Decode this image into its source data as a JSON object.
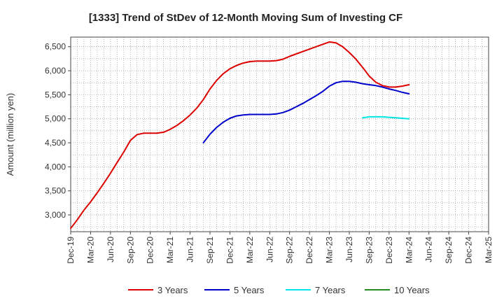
{
  "chart_data": {
    "type": "line",
    "title": "[1333]  Trend of StDev of 12-Month Moving Sum of Investing CF",
    "xlabel": "",
    "ylabel": "Amount (million yen)",
    "ylim": [
      2650,
      6700
    ],
    "y_ticks": [
      3000,
      3500,
      4000,
      4500,
      5000,
      5500,
      6000,
      6500
    ],
    "y_tick_labels": [
      "3,000",
      "3,500",
      "4,000",
      "4,500",
      "5,000",
      "5,500",
      "6,000",
      "6,500"
    ],
    "x_ticks": [
      "Dec-19",
      "Mar-20",
      "Jun-20",
      "Sep-20",
      "Dec-20",
      "Mar-21",
      "Jun-21",
      "Sep-21",
      "Dec-21",
      "Mar-22",
      "Jun-22",
      "Sep-22",
      "Dec-22",
      "Mar-23",
      "Jun-23",
      "Sep-23",
      "Dec-23",
      "Mar-24",
      "Jun-24",
      "Sep-24",
      "Dec-24",
      "Mar-25"
    ],
    "grid": true,
    "legend_position": "bottom",
    "series": [
      {
        "name": "3 Years",
        "color": "#dd0000",
        "values": [
          [
            "2019-12",
            2720
          ],
          [
            "2020-01",
            2900
          ],
          [
            "2020-02",
            3100
          ],
          [
            "2020-03",
            3270
          ],
          [
            "2020-04",
            3460
          ],
          [
            "2020-05",
            3660
          ],
          [
            "2020-06",
            3870
          ],
          [
            "2020-07",
            4090
          ],
          [
            "2020-08",
            4310
          ],
          [
            "2020-09",
            4550
          ],
          [
            "2020-10",
            4670
          ],
          [
            "2020-11",
            4700
          ],
          [
            "2020-12",
            4700
          ],
          [
            "2021-01",
            4700
          ],
          [
            "2021-02",
            4720
          ],
          [
            "2021-03",
            4780
          ],
          [
            "2021-04",
            4860
          ],
          [
            "2021-05",
            4960
          ],
          [
            "2021-06",
            5080
          ],
          [
            "2021-07",
            5220
          ],
          [
            "2021-08",
            5400
          ],
          [
            "2021-09",
            5620
          ],
          [
            "2021-10",
            5800
          ],
          [
            "2021-11",
            5940
          ],
          [
            "2021-12",
            6040
          ],
          [
            "2022-01",
            6110
          ],
          [
            "2022-02",
            6160
          ],
          [
            "2022-03",
            6190
          ],
          [
            "2022-04",
            6200
          ],
          [
            "2022-05",
            6200
          ],
          [
            "2022-06",
            6200
          ],
          [
            "2022-07",
            6210
          ],
          [
            "2022-08",
            6240
          ],
          [
            "2022-09",
            6300
          ],
          [
            "2022-10",
            6350
          ],
          [
            "2022-11",
            6400
          ],
          [
            "2022-12",
            6450
          ],
          [
            "2023-01",
            6500
          ],
          [
            "2023-02",
            6550
          ],
          [
            "2023-03",
            6600
          ],
          [
            "2023-04",
            6580
          ],
          [
            "2023-05",
            6500
          ],
          [
            "2023-06",
            6380
          ],
          [
            "2023-07",
            6240
          ],
          [
            "2023-08",
            6070
          ],
          [
            "2023-09",
            5890
          ],
          [
            "2023-10",
            5760
          ],
          [
            "2023-11",
            5690
          ],
          [
            "2023-12",
            5660
          ],
          [
            "2024-01",
            5660
          ],
          [
            "2024-02",
            5680
          ],
          [
            "2024-03",
            5710
          ]
        ]
      },
      {
        "name": "5 Years",
        "color": "#0000cc",
        "values": [
          [
            "2021-08",
            4500
          ],
          [
            "2021-09",
            4680
          ],
          [
            "2021-10",
            4820
          ],
          [
            "2021-11",
            4930
          ],
          [
            "2021-12",
            5010
          ],
          [
            "2022-01",
            5060
          ],
          [
            "2022-02",
            5080
          ],
          [
            "2022-03",
            5090
          ],
          [
            "2022-04",
            5090
          ],
          [
            "2022-05",
            5090
          ],
          [
            "2022-06",
            5090
          ],
          [
            "2022-07",
            5100
          ],
          [
            "2022-08",
            5130
          ],
          [
            "2022-09",
            5180
          ],
          [
            "2022-10",
            5250
          ],
          [
            "2022-11",
            5320
          ],
          [
            "2022-12",
            5400
          ],
          [
            "2023-01",
            5480
          ],
          [
            "2023-02",
            5570
          ],
          [
            "2023-03",
            5680
          ],
          [
            "2023-04",
            5750
          ],
          [
            "2023-05",
            5780
          ],
          [
            "2023-06",
            5780
          ],
          [
            "2023-07",
            5760
          ],
          [
            "2023-08",
            5730
          ],
          [
            "2023-09",
            5710
          ],
          [
            "2023-10",
            5690
          ],
          [
            "2023-11",
            5660
          ],
          [
            "2023-12",
            5620
          ],
          [
            "2024-01",
            5590
          ],
          [
            "2024-02",
            5550
          ],
          [
            "2024-03",
            5520
          ]
        ]
      },
      {
        "name": "7 Years",
        "color": "#00e5e5",
        "values": [
          [
            "2023-08",
            5020
          ],
          [
            "2023-09",
            5040
          ],
          [
            "2023-10",
            5040
          ],
          [
            "2023-11",
            5040
          ],
          [
            "2023-12",
            5030
          ],
          [
            "2024-01",
            5020
          ],
          [
            "2024-02",
            5010
          ],
          [
            "2024-03",
            5000
          ]
        ]
      },
      {
        "name": "10 Years",
        "color": "#228B22",
        "values": []
      }
    ]
  }
}
